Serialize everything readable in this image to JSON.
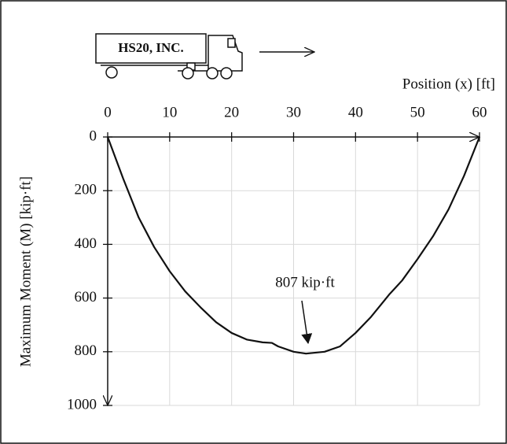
{
  "chart_data": {
    "type": "line",
    "truck_label": "HS20, INC.",
    "xlabel": "Position (x) [ft]",
    "ylabel": "Maximum Moment (M) [kip·ft]",
    "annotation": "807 kip·ft",
    "x": [
      0,
      2.5,
      5,
      7.5,
      10,
      12.5,
      15,
      17.5,
      20,
      22.5,
      25,
      26.5,
      27.5,
      30,
      32,
      35,
      37.5,
      40,
      42.5,
      45.5,
      47.5,
      50,
      52.5,
      55,
      57.5,
      60
    ],
    "series": [
      {
        "name": "Maximum Moment",
        "color": "#111111",
        "values": [
          0,
          155,
          300,
          410,
          500,
          575,
          635,
          690,
          730,
          755,
          765,
          767,
          780,
          800,
          807,
          800,
          780,
          730,
          670,
          585,
          535,
          455,
          370,
          270,
          145,
          0
        ]
      }
    ],
    "xlim": [
      0,
      60
    ],
    "xticks": [
      0,
      10,
      20,
      30,
      40,
      50,
      60
    ],
    "ylim": [
      0,
      1000
    ],
    "yticks": [
      0,
      200,
      400,
      600,
      800,
      1000
    ],
    "y_inverted": true,
    "grid": true
  }
}
